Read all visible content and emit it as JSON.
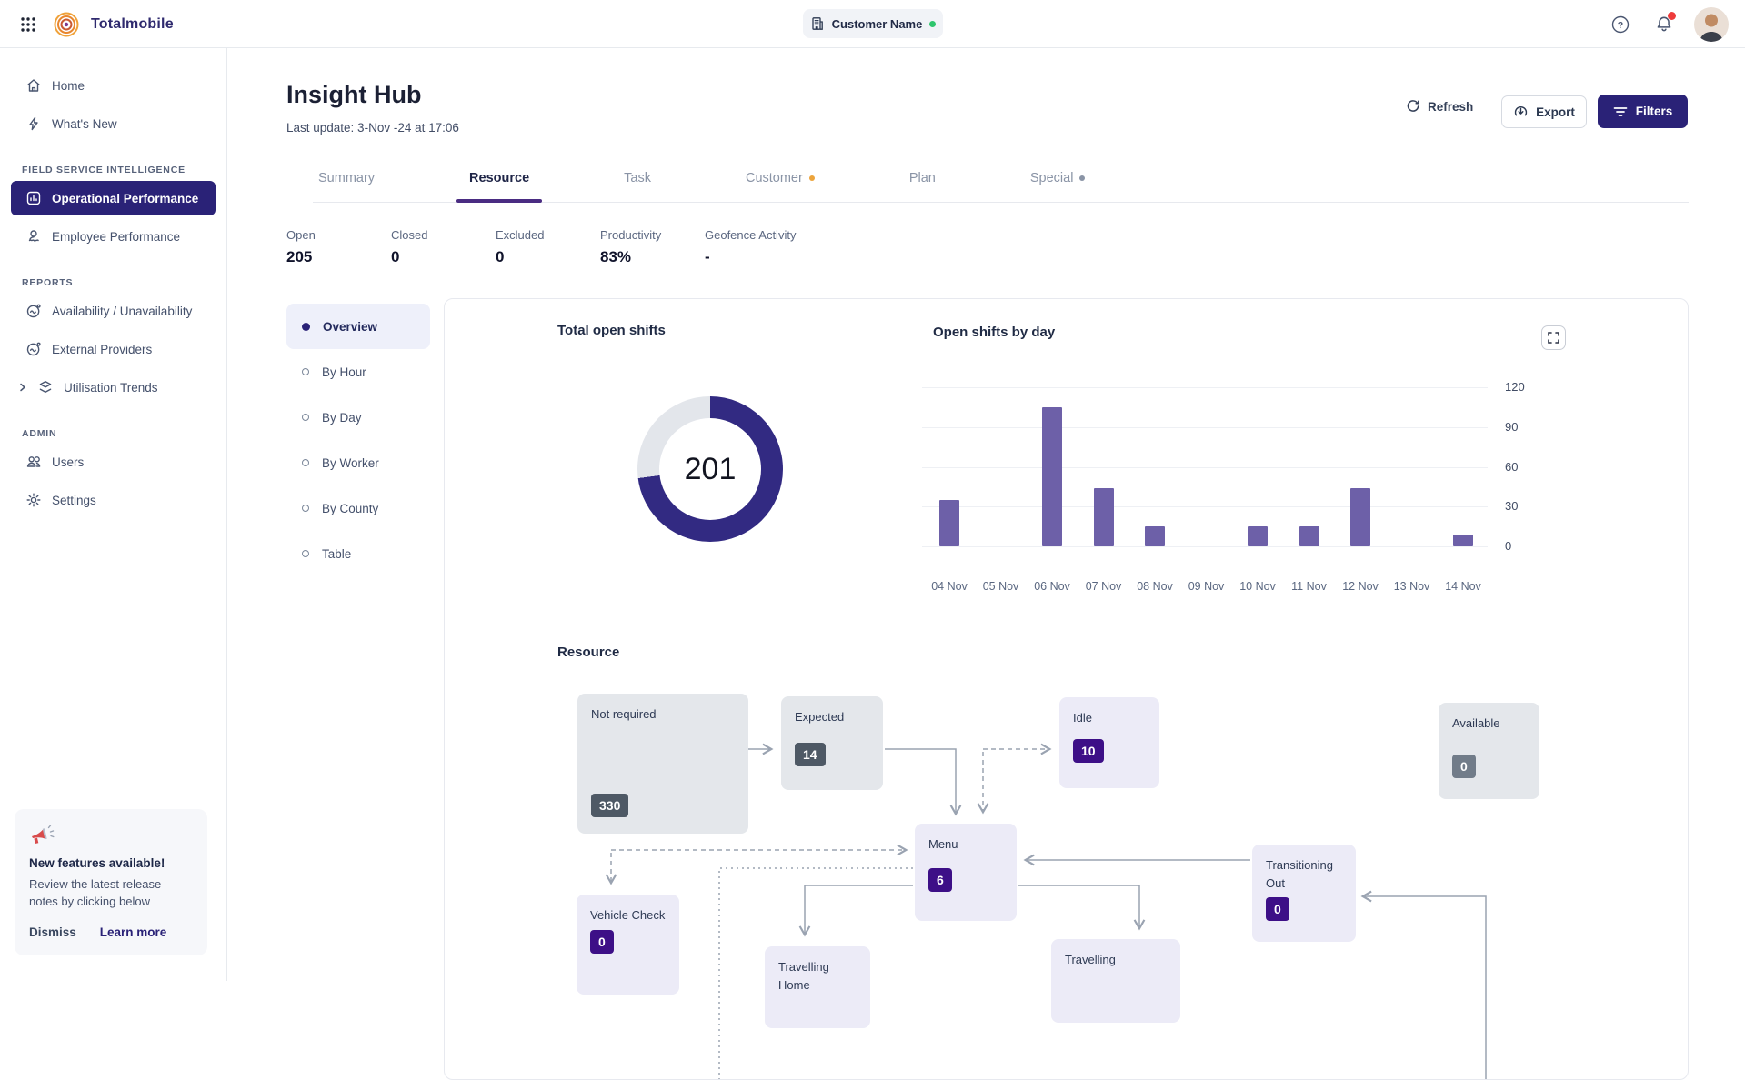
{
  "topbar": {
    "brand": "Totalmobile",
    "customer": {
      "label": "Customer Name"
    }
  },
  "sidebar": {
    "groups": [
      {
        "label": "",
        "items": [
          {
            "label": "Home",
            "icon": "home"
          },
          {
            "label": "What's New",
            "icon": "bolt"
          }
        ]
      },
      {
        "label": "FIELD SERVICE INTELLIGENCE",
        "items": [
          {
            "label": "Operational Performance",
            "icon": "chart-bar",
            "active": true
          },
          {
            "label": "Employee Performance",
            "icon": "person"
          }
        ]
      },
      {
        "label": "REPORTS",
        "items": [
          {
            "label": "Availability / Unavailability",
            "icon": "chart-line"
          },
          {
            "label": "External Providers",
            "icon": "chart-line"
          },
          {
            "label": "Utilisation Trends",
            "icon": "layers",
            "chevron": true
          }
        ]
      },
      {
        "label": "ADMIN",
        "items": [
          {
            "label": "Users",
            "icon": "users"
          },
          {
            "label": "Settings",
            "icon": "gear"
          }
        ]
      }
    ],
    "promo": {
      "title": "New features available!",
      "body": "Review the latest release notes by clicking below",
      "dismiss": "Dismiss",
      "learn_more": "Learn more"
    }
  },
  "header": {
    "title": "Insight Hub",
    "last_update": "Last update: 3-Nov -24 at 17:06",
    "refresh": "Refresh",
    "export": "Export",
    "filters": "Filters"
  },
  "tabs": [
    {
      "label": "Summary"
    },
    {
      "label": "Resource",
      "active": true
    },
    {
      "label": "Task"
    },
    {
      "label": "Customer",
      "dot": "#eca43c"
    },
    {
      "label": "Plan"
    },
    {
      "label": "Special",
      "dot": "#8a94a6"
    }
  ],
  "stats": [
    {
      "label": "Open",
      "value": "205"
    },
    {
      "label": "Closed",
      "value": "0"
    },
    {
      "label": "Excluded",
      "value": "0"
    },
    {
      "label": "Productivity",
      "value": "83%"
    },
    {
      "label": "Geofence Activity",
      "value": "-"
    }
  ],
  "section_nav": [
    {
      "label": "Overview",
      "active": true
    },
    {
      "label": "By Hour"
    },
    {
      "label": "By Day"
    },
    {
      "label": "By Worker"
    },
    {
      "label": "By County"
    },
    {
      "label": "Table"
    }
  ],
  "chart_data": [
    {
      "type": "donut",
      "title": "Total open shifts",
      "value": 201,
      "fill_percent": 73,
      "fill_color": "#322a82",
      "track_color": "#e3e6eb"
    },
    {
      "type": "bar",
      "title": "Open shifts by day",
      "categories": [
        "04 Nov",
        "05 Nov",
        "06 Nov",
        "07 Nov",
        "08 Nov",
        "09 Nov",
        "10 Nov",
        "11 Nov",
        "12 Nov",
        "13 Nov",
        "14 Nov"
      ],
      "values": [
        35,
        0,
        105,
        44,
        15,
        0,
        15,
        15,
        44,
        0,
        9
      ],
      "ylim": [
        0,
        120
      ],
      "yticks": [
        120,
        90,
        60,
        30,
        0
      ],
      "bar_color": "#6d60a8",
      "grid": true,
      "ticks_position": "right"
    }
  ],
  "diagram": {
    "title": "Resource",
    "nodes": [
      {
        "id": "not-required",
        "label": "Not required",
        "value": "330",
        "style": "gray",
        "badge": "slate"
      },
      {
        "id": "expected",
        "label": "Expected",
        "value": "14",
        "style": "gray",
        "badge": "slate"
      },
      {
        "id": "idle",
        "label": "Idle",
        "value": "10",
        "style": "lavender",
        "badge": "purple"
      },
      {
        "id": "available",
        "label": "Available",
        "value": "0",
        "style": "gray",
        "badge": "gray"
      },
      {
        "id": "menu",
        "label": "Menu",
        "value": "6",
        "style": "lavender",
        "badge": "purple"
      },
      {
        "id": "transitioning-out",
        "label": "Transitioning Out",
        "value": "0",
        "style": "lavender",
        "badge": "purple"
      },
      {
        "id": "vehicle-check",
        "label": "Vehicle Check",
        "value": "0",
        "style": "lavender",
        "badge": "purple"
      },
      {
        "id": "travelling-home",
        "label": "Travelling Home",
        "value": "",
        "style": "lavender",
        "badge": ""
      },
      {
        "id": "travelling",
        "label": "Travelling",
        "value": "",
        "style": "lavender",
        "badge": ""
      }
    ]
  }
}
